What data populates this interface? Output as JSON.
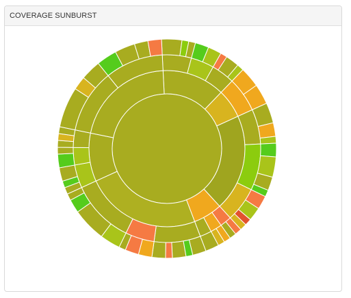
{
  "panel": {
    "title": "COVERAGE SUNBURST"
  },
  "colors": {
    "olive": "#a8ac20",
    "olive_dark": "#9fa51f",
    "olive_mid": "#aeb021",
    "yellow_green": "#a9c41a",
    "green": "#8ccc0e",
    "bright_green": "#55cc1c",
    "gold": "#d8b41f",
    "orange": "#f0a81e",
    "coral": "#f57a43",
    "red": "#e2522e",
    "stroke": "#ffffff"
  },
  "chart_data": {
    "type": "sunburst",
    "title": "COVERAGE SUNBURST",
    "root": {
      "value": 100,
      "color": "olive",
      "children": [
        {
          "value": 13,
          "color": "olive",
          "children": [
            {
              "value": 5,
              "color": "olive",
              "children": [
                {
                  "value": 3,
                  "color": "olive"
                },
                {
                  "value": 1,
                  "color": "green"
                },
                {
                  "value": 1,
                  "color": "olive"
                }
              ]
            },
            {
              "value": 4,
              "color": "yellow_green",
              "children": [
                {
                  "value": 2,
                  "color": "bright_green"
                },
                {
                  "value": 2,
                  "color": "yellow_green"
                }
              ]
            },
            {
              "value": 4,
              "color": "olive",
              "children": [
                {
                  "value": 1,
                  "color": "coral"
                },
                {
                  "value": 2,
                  "color": "olive"
                },
                {
                  "value": 1,
                  "color": "yellow_green"
                }
              ]
            }
          ]
        },
        {
          "value": 6,
          "color": "gold",
          "children": [
            {
              "value": 6,
              "color": "orange",
              "children": [
                {
                  "value": 3,
                  "color": "orange"
                },
                {
                  "value": 3,
                  "color": "orange"
                }
              ]
            }
          ]
        },
        {
          "value": 20,
          "color": "olive_dark",
          "children": [
            {
              "value": 6,
              "color": "olive",
              "children": [
                {
                  "value": 3,
                  "color": "olive"
                },
                {
                  "value": 2,
                  "color": "orange"
                },
                {
                  "value": 1,
                  "color": "yellow_green"
                }
              ]
            },
            {
              "value": 8,
              "color": "green",
              "children": [
                {
                  "value": 2,
                  "color": "bright_green"
                },
                {
                  "value": 3,
                  "color": "yellow_green"
                },
                {
                  "value": 2,
                  "color": "olive"
                },
                {
                  "value": 1,
                  "color": "bright_green"
                }
              ]
            },
            {
              "value": 6,
              "color": "gold",
              "children": [
                {
                  "value": 2,
                  "color": "coral"
                },
                {
                  "value": 2,
                  "color": "yellow_green"
                },
                {
                  "value": 1,
                  "color": "red"
                },
                {
                  "value": 1,
                  "color": "gold"
                }
              ]
            }
          ]
        },
        {
          "value": 6,
          "color": "orange",
          "children": [
            {
              "value": 2,
              "color": "coral",
              "children": [
                {
                  "value": 1,
                  "color": "coral"
                },
                {
                  "value": 1,
                  "color": "olive"
                }
              ]
            },
            {
              "value": 2,
              "color": "orange",
              "children": [
                {
                  "value": 1,
                  "color": "orange"
                },
                {
                  "value": 1,
                  "color": "gold"
                }
              ]
            },
            {
              "value": 2,
              "color": "olive",
              "children": [
                {
                  "value": 2,
                  "color": "olive"
                }
              ]
            }
          ]
        },
        {
          "value": 24,
          "color": "olive_mid",
          "children": [
            {
              "value": 8,
              "color": "olive",
              "children": [
                {
                  "value": 2,
                  "color": "olive"
                },
                {
                  "value": 1,
                  "color": "bright_green"
                },
                {
                  "value": 2,
                  "color": "olive"
                },
                {
                  "value": 1,
                  "color": "coral"
                },
                {
                  "value": 2,
                  "color": "olive"
                }
              ]
            },
            {
              "value": 5,
              "color": "coral",
              "children": [
                {
                  "value": 2,
                  "color": "orange"
                },
                {
                  "value": 2,
                  "color": "coral"
                },
                {
                  "value": 1,
                  "color": "olive"
                }
              ]
            },
            {
              "value": 11,
              "color": "olive",
              "children": [
                {
                  "value": 3,
                  "color": "yellow_green"
                },
                {
                  "value": 5,
                  "color": "olive"
                },
                {
                  "value": 2,
                  "color": "bright_green"
                },
                {
                  "value": 1,
                  "color": "olive"
                }
              ]
            }
          ]
        },
        {
          "value": 10,
          "color": "olive",
          "children": [
            {
              "value": 4,
              "color": "yellow_green",
              "children": [
                {
                  "value": 1,
                  "color": "olive"
                },
                {
                  "value": 1,
                  "color": "bright_green"
                },
                {
                  "value": 2,
                  "color": "olive"
                }
              ]
            },
            {
              "value": 3,
              "color": "yellow_green",
              "children": [
                {
                  "value": 2,
                  "color": "bright_green"
                },
                {
                  "value": 1,
                  "color": "olive"
                }
              ]
            },
            {
              "value": 3,
              "color": "olive",
              "children": [
                {
                  "value": 1,
                  "color": "olive"
                },
                {
                  "value": 1,
                  "color": "gold"
                },
                {
                  "value": 1,
                  "color": "olive"
                }
              ]
            }
          ]
        },
        {
          "value": 21,
          "color": "olive",
          "children": [
            {
              "value": 11,
              "color": "olive",
              "children": [
                {
                  "value": 6,
                  "color": "olive"
                },
                {
                  "value": 2,
                  "color": "gold"
                },
                {
                  "value": 3,
                  "color": "olive"
                }
              ]
            },
            {
              "value": 10,
              "color": "olive",
              "children": [
                {
                  "value": 3,
                  "color": "bright_green"
                },
                {
                  "value": 3,
                  "color": "olive"
                },
                {
                  "value": 2,
                  "color": "olive"
                },
                {
                  "value": 2,
                  "color": "coral"
                }
              ]
            }
          ]
        }
      ]
    }
  }
}
